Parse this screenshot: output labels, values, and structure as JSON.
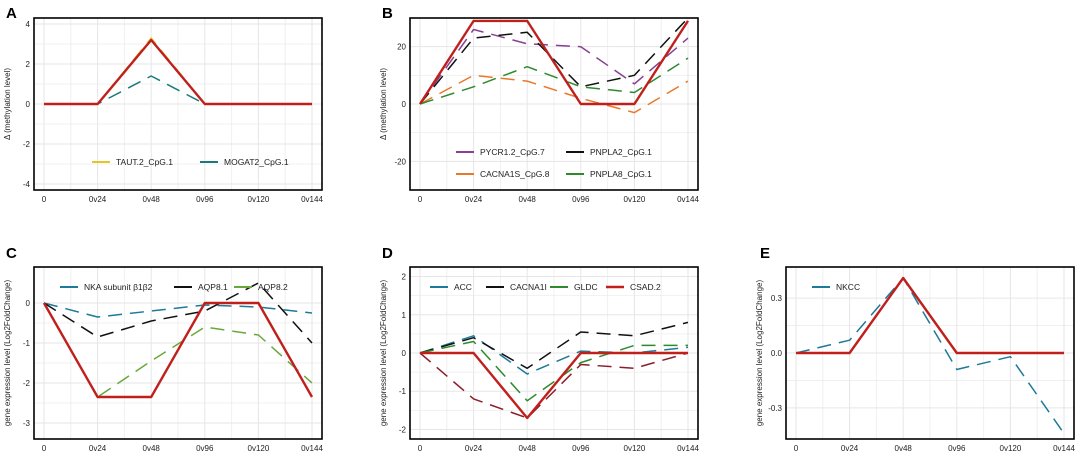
{
  "chart_data": [
    {
      "panel": "A",
      "type": "line",
      "ylabel": "Δ  (methylation level)",
      "categories": [
        "0",
        "0v24",
        "0v48",
        "0v96",
        "0v120",
        "0v144"
      ],
      "x": [
        0,
        24,
        48,
        96,
        120,
        144
      ],
      "ylim": [
        -4.3,
        4.3
      ],
      "yticks": [
        -4,
        -2,
        0,
        2,
        4
      ],
      "ytick_labels": [
        "-4",
        "-2",
        "0",
        "2",
        "4"
      ],
      "series": [
        {
          "name": "TAUT.2_CpG.1",
          "color": "#e3c62a",
          "style": "dashed",
          "values": [
            0,
            0,
            3.3,
            0,
            0,
            0
          ]
        },
        {
          "name": "MOGAT2_CpG.1",
          "color": "#1d7a7a",
          "style": "dashed",
          "values": [
            0,
            0,
            1.4,
            0,
            0,
            0
          ]
        },
        {
          "name": "",
          "color": "#c0201c",
          "style": "solid",
          "values": [
            0,
            0,
            3.2,
            0,
            0,
            0
          ]
        }
      ]
    },
    {
      "panel": "B",
      "type": "line",
      "ylabel": "Δ  (methylation level)",
      "categories": [
        "0",
        "0v24",
        "0v48",
        "0v96",
        "0v120",
        "0v144"
      ],
      "x": [
        0,
        24,
        48,
        96,
        120,
        144
      ],
      "ylim": [
        -30,
        30
      ],
      "yticks": [
        -20,
        0,
        20
      ],
      "ytick_labels": [
        "-20",
        "0",
        "20"
      ],
      "series": [
        {
          "name": "PYCR1.2_CpG.7",
          "color": "#8a3f94",
          "style": "dashed",
          "values": [
            0,
            26,
            21,
            20,
            7,
            23
          ]
        },
        {
          "name": "PNPLA2_CpG.1",
          "color": "#111111",
          "style": "dashed",
          "values": [
            0,
            23,
            25,
            6,
            10,
            30
          ]
        },
        {
          "name": "CACNA1S_CpG.8",
          "color": "#e8792b",
          "style": "dashed",
          "values": [
            0,
            10,
            8,
            2,
            -3,
            8
          ]
        },
        {
          "name": "PNPLA8_CpG.1",
          "color": "#2f8a2f",
          "style": "dashed",
          "values": [
            0,
            6,
            13,
            6,
            4,
            16
          ]
        },
        {
          "name": "",
          "color": "#c0201c",
          "style": "solid",
          "values": [
            0,
            29,
            29,
            0,
            0,
            29
          ]
        }
      ]
    },
    {
      "panel": "C",
      "type": "line",
      "ylabel": "gene expression level (Log2FoldChange)",
      "categories": [
        "0",
        "0v24",
        "0v48",
        "0v96",
        "0v120",
        "0v144"
      ],
      "x": [
        0,
        24,
        48,
        96,
        120,
        144
      ],
      "ylim": [
        -3.4,
        0.9
      ],
      "yticks": [
        -3,
        -2,
        -1,
        0
      ],
      "ytick_labels": [
        "-3",
        "-2",
        "-1",
        "0"
      ],
      "series": [
        {
          "name": "NKA subunit β1β2",
          "color": "#1d7a99",
          "style": "dashed",
          "values": [
            0,
            -0.35,
            -0.2,
            -0.05,
            -0.1,
            -0.25
          ]
        },
        {
          "name": "AQP8.1",
          "color": "#111111",
          "style": "dashed",
          "values": [
            0,
            -0.85,
            -0.45,
            -0.2,
            0.5,
            -1.0
          ]
        },
        {
          "name": "AQP8.2",
          "color": "#6aa83a",
          "style": "dashed",
          "values": [
            0,
            -2.35,
            -1.45,
            -0.6,
            -0.8,
            -2.0
          ]
        },
        {
          "name": "",
          "color": "#c0201c",
          "style": "solid",
          "values": [
            0,
            -2.35,
            -2.35,
            0,
            0,
            -2.35
          ]
        }
      ]
    },
    {
      "panel": "D",
      "type": "line",
      "ylabel": "gene expression level (Log2FoldChange)",
      "categories": [
        "0",
        "0v24",
        "0v48",
        "0v96",
        "0v120",
        "0v144"
      ],
      "x": [
        0,
        24,
        48,
        96,
        120,
        144
      ],
      "ylim": [
        -2.25,
        2.25
      ],
      "yticks": [
        -2,
        -1,
        0,
        1,
        2
      ],
      "ytick_labels": [
        "-2",
        "-1",
        "0",
        "1",
        "2"
      ],
      "series": [
        {
          "name": "ACC",
          "color": "#1d7a99",
          "style": "dashed",
          "values": [
            0,
            0.45,
            -0.55,
            0.05,
            0.0,
            0.15
          ]
        },
        {
          "name": "CACNA1I",
          "color": "#111111",
          "style": "dashed",
          "values": [
            0,
            0.4,
            -0.4,
            0.55,
            0.45,
            0.8
          ]
        },
        {
          "name": "GLDC",
          "color": "#2f8a2f",
          "style": "dashed",
          "values": [
            0,
            0.3,
            -1.25,
            -0.25,
            0.2,
            0.2
          ]
        },
        {
          "name": "",
          "color": "#8a1f2a",
          "style": "dashed",
          "values": [
            0,
            -1.2,
            -1.7,
            -0.3,
            -0.4,
            0.0
          ]
        },
        {
          "name": "CSAD.2",
          "color": "#c0201c",
          "style": "solid",
          "values": [
            0,
            0,
            -1.7,
            0,
            0,
            0
          ]
        }
      ]
    },
    {
      "panel": "E",
      "type": "line",
      "ylabel": "gene expression level (Log2FoldChange)",
      "categories": [
        "0",
        "0v24",
        "0v48",
        "0v96",
        "0v120",
        "0v144"
      ],
      "x": [
        0,
        24,
        48,
        96,
        120,
        144
      ],
      "ylim": [
        -0.47,
        0.47
      ],
      "yticks": [
        -0.3,
        0,
        0.3
      ],
      "ytick_labels": [
        "-0.3",
        "0.0",
        "0.3"
      ],
      "series": [
        {
          "name": "NKCC",
          "color": "#1d7a99",
          "style": "dashed",
          "values": [
            0,
            0.07,
            0.41,
            -0.09,
            -0.02,
            -0.44
          ]
        },
        {
          "name": "",
          "color": "#c0201c",
          "style": "solid",
          "values": [
            0,
            0,
            0.41,
            0,
            0,
            0
          ]
        }
      ]
    }
  ]
}
